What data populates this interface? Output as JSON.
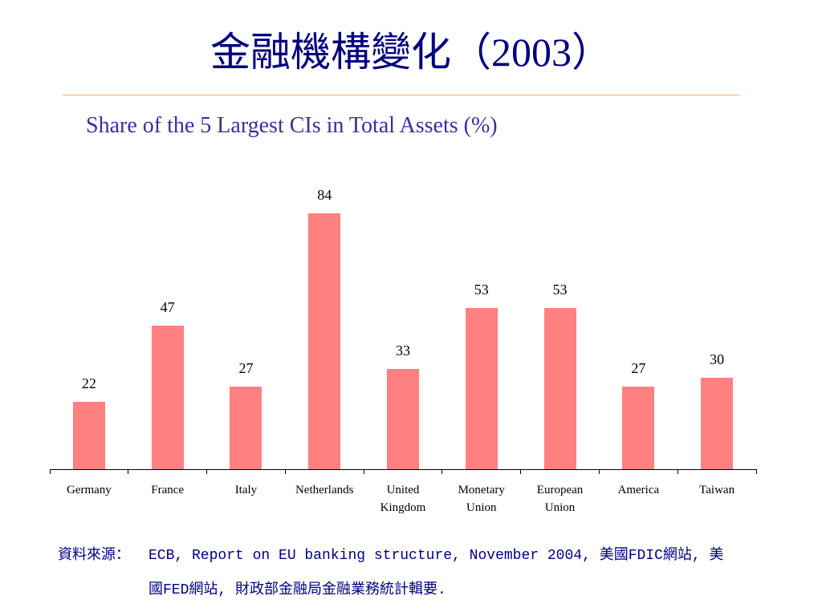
{
  "slide": {
    "title": "金融機構變化（2003）"
  },
  "chart_data": {
    "type": "bar",
    "title": "Share of the 5 Largest CIs in Total Assets (%)",
    "xlabel": "",
    "ylabel": "",
    "categories": [
      "Germany",
      "France",
      "Italy",
      "Netherlands",
      "United Kingdom",
      "Monetary Union",
      "European Union",
      "America",
      "Taiwan"
    ],
    "values": [
      22,
      47,
      27,
      84,
      33,
      53,
      53,
      27,
      30
    ],
    "data_labels": true,
    "grid": false,
    "legend": false,
    "y_axis_shown": false,
    "bar_color": "#FF8080"
  },
  "source": {
    "label": "資料來源：",
    "lines": [
      "ECB, Report on EU banking structure, November 2004, 美國FDIC網站, 美",
      "國FED網站, 財政部金融局金融業務統計輯要."
    ]
  },
  "colors": {
    "title": "#000080",
    "subtitle": "#333399",
    "rule": "#F3B96A",
    "source": "#000080"
  }
}
